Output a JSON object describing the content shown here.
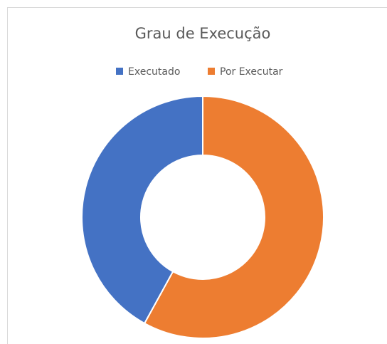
{
  "chart_data": {
    "type": "donut",
    "title": "Grau de Execução",
    "categories": [
      "Executado",
      "Por Executar"
    ],
    "values": [
      42,
      58
    ],
    "colors": [
      "#4472c4",
      "#ed7d31"
    ],
    "legend": "top"
  }
}
